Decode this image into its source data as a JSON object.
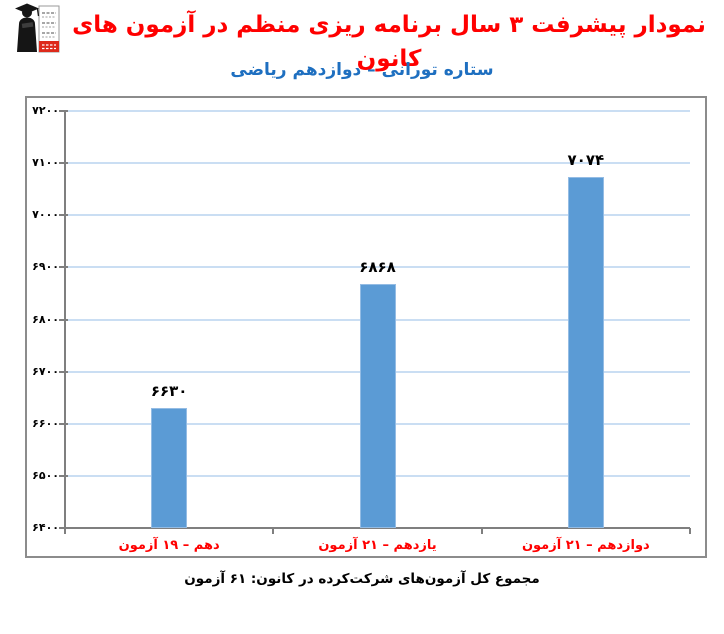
{
  "header": {
    "title": "نمودار پیشرفت ۳ سال برنامه ریزی منظم در آزمون های کانون",
    "subtitle": "ستاره تورانی – دوازدهم ریاضی",
    "title_color": "#FF0000",
    "subtitle_color": "#1E6FC0"
  },
  "chart_data": {
    "type": "bar",
    "title": "نمودار پیشرفت ۳ سال برنامه ریزی منظم در آزمون های کانون",
    "subtitle": "ستاره تورانی – دوازدهم ریاضی",
    "categories": [
      "دهم – ۱۹ آزمون",
      "یازدهم – ۲۱ آزمون",
      "دوازدهم – ۲۱ آزمون"
    ],
    "values": [
      6630,
      6868,
      7074
    ],
    "value_labels": [
      "۶۶۳۰",
      "۶۸۶۸",
      "۷۰۷۴"
    ],
    "ylim": [
      6400,
      7200
    ],
    "ytick_step": 100,
    "yticks": [
      6400,
      6500,
      6600,
      6700,
      6800,
      6900,
      7000,
      7100,
      7200
    ],
    "ytick_labels": [
      "۶۴۰۰",
      "۶۵۰۰",
      "۶۶۰۰",
      "۶۷۰۰",
      "۶۸۰۰",
      "۶۹۰۰",
      "۷۰۰۰",
      "۷۱۰۰",
      "۷۲۰۰"
    ],
    "grid": true,
    "legend": "none",
    "bar_color": "#5B9BD5",
    "bar_border_color": "#94BCE4",
    "gridline_color": "#CADEF3",
    "axis_color": "#7F7F7F",
    "value_label_color": "#000000",
    "category_label_color": "#FF0000"
  },
  "footer": {
    "total_text": "مجموع کل آزمون‌های شرکت‌کرده در کانون:  ۶۱ آزمون"
  },
  "logo": {
    "name": "kanoon-logo",
    "accent_color": "#DD2A1B"
  }
}
